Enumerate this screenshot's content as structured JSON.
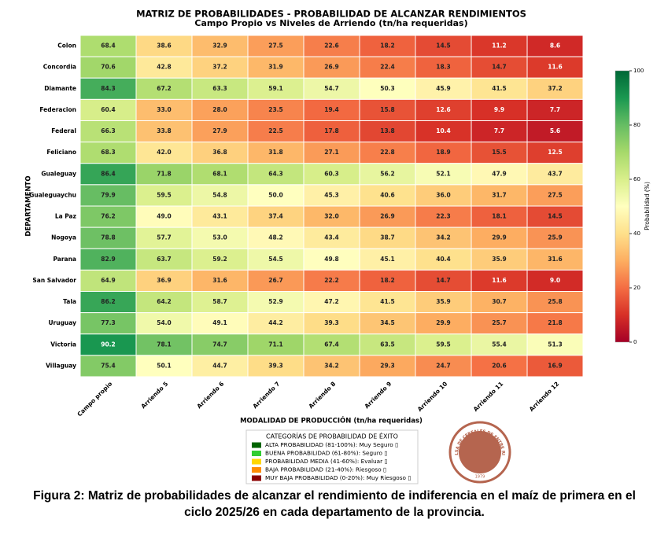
{
  "chart_data": {
    "type": "heatmap",
    "title": "MATRIZ DE PROBABILIDADES - PROBABILIDAD DE ALCANZAR RENDIMIENTOS",
    "subtitle": "Campo Propio vs Niveles de Arriendo (tn/ha requeridas)",
    "x_label": "MODALIDAD DE PRODUCCIÓN (tn/ha requeridas)",
    "y_label": "DEPARTAMENTO",
    "colorbar_label": "Probabilidad (%)",
    "categories": [
      "Campo propio",
      "Arriendo 5",
      "Arriendo 6",
      "Arriendo 7",
      "Arriendo 8",
      "Arriendo 9",
      "Arriendo 10",
      "Arriendo 11",
      "Arriendo 12"
    ],
    "rows": [
      "Colon",
      "Concordia",
      "Diamante",
      "Federacion",
      "Federal",
      "Feliciano",
      "Gualeguay",
      "Gualeguaychu",
      "La Paz",
      "Nogoya",
      "Parana",
      "San Salvador",
      "Tala",
      "Uruguay",
      "Victoria",
      "Villaguay"
    ],
    "values": [
      [
        68.4,
        38.6,
        32.9,
        27.5,
        22.6,
        18.2,
        14.5,
        11.2,
        8.6
      ],
      [
        70.6,
        42.8,
        37.2,
        31.9,
        26.9,
        22.4,
        18.3,
        14.7,
        11.6
      ],
      [
        84.3,
        67.2,
        63.3,
        59.1,
        54.7,
        50.3,
        45.9,
        41.5,
        37.2
      ],
      [
        60.4,
        33.0,
        28.0,
        23.5,
        19.4,
        15.8,
        12.6,
        9.9,
        7.7
      ],
      [
        66.3,
        33.8,
        27.9,
        22.5,
        17.8,
        13.8,
        10.4,
        7.7,
        5.6
      ],
      [
        68.3,
        42.0,
        36.8,
        31.8,
        27.1,
        22.8,
        18.9,
        15.5,
        12.5
      ],
      [
        86.4,
        71.8,
        68.1,
        64.3,
        60.3,
        56.2,
        52.1,
        47.9,
        43.7
      ],
      [
        79.9,
        59.5,
        54.8,
        50.0,
        45.3,
        40.6,
        36.0,
        31.7,
        27.5
      ],
      [
        76.2,
        49.0,
        43.1,
        37.4,
        32.0,
        26.9,
        22.3,
        18.1,
        14.5
      ],
      [
        78.8,
        57.7,
        53.0,
        48.2,
        43.4,
        38.7,
        34.2,
        29.9,
        25.9
      ],
      [
        82.9,
        63.7,
        59.2,
        54.5,
        49.8,
        45.1,
        40.4,
        35.9,
        31.6
      ],
      [
        64.9,
        36.9,
        31.6,
        26.7,
        22.2,
        18.2,
        14.7,
        11.6,
        9.0
      ],
      [
        86.2,
        64.2,
        58.7,
        52.9,
        47.2,
        41.5,
        35.9,
        30.7,
        25.8
      ],
      [
        77.3,
        54.0,
        49.1,
        44.2,
        39.3,
        34.5,
        29.9,
        25.7,
        21.8
      ],
      [
        90.2,
        78.1,
        74.7,
        71.1,
        67.4,
        63.5,
        59.5,
        55.4,
        51.3
      ],
      [
        75.4,
        50.1,
        44.7,
        39.3,
        34.2,
        29.3,
        24.7,
        20.6,
        16.9
      ]
    ],
    "value_labels": [
      [
        "68.4",
        "38.6",
        "32.9",
        "27.5",
        "22.6",
        "18.2",
        "14.5",
        "11.2",
        "8.6"
      ],
      [
        "70.6",
        "42.8",
        "37.2",
        "31.9",
        "26.9",
        "22.4",
        "18.3",
        "14.7",
        "11.6"
      ],
      [
        "84.3",
        "67.2",
        "63.3",
        "59.1",
        "54.7",
        "50.3",
        "45.9",
        "41.5",
        "37.2"
      ],
      [
        "60.4",
        "33.0",
        "28.0",
        "23.5",
        "19.4",
        "15.8",
        "12.6",
        "9.9",
        "7.7"
      ],
      [
        "66.3",
        "33.8",
        "27.9",
        "22.5",
        "17.8",
        "13.8",
        "10.4",
        "7.7",
        "5.6"
      ],
      [
        "68.3",
        "42.0",
        "36.8",
        "31.8",
        "27.1",
        "22.8",
        "18.9",
        "15.5",
        "12.5"
      ],
      [
        "86.4",
        "71.8",
        "68.1",
        "64.3",
        "60.3",
        "56.2",
        "52.1",
        "47.9",
        "43.7"
      ],
      [
        "79.9",
        "59.5",
        "54.8",
        "50.0",
        "45.3",
        "40.6",
        "36.0",
        "31.7",
        "27.5"
      ],
      [
        "76.2",
        "49.0",
        "43.1",
        "37.4",
        "32.0",
        "26.9",
        "22.3",
        "18.1",
        "14.5"
      ],
      [
        "78.8",
        "57.7",
        "53.0",
        "48.2",
        "43.4",
        "38.7",
        "34.2",
        "29.9",
        "25.9"
      ],
      [
        "82.9",
        "63.7",
        "59.2",
        "54.5",
        "49.8",
        "45.1",
        "40.4",
        "35.9",
        "31.6"
      ],
      [
        "64.9",
        "36.9",
        "31.6",
        "26.7",
        "22.2",
        "18.2",
        "14.7",
        "11.6",
        "9.0"
      ],
      [
        "86.2",
        "64.2",
        "58.7",
        "52.9",
        "47.2",
        "41.5",
        "35.9",
        "30.7",
        "25.8"
      ],
      [
        "77.3",
        "54.0",
        "49.1",
        "44.2",
        "39.3",
        "34.5",
        "29.9",
        "25.7",
        "21.8"
      ],
      [
        "90.2",
        "78.1",
        "74.7",
        "71.1",
        "67.4",
        "63.5",
        "59.5",
        "55.4",
        "51.3"
      ],
      [
        "75.4",
        "50.1",
        "44.7",
        "39.3",
        "34.2",
        "29.3",
        "24.7",
        "20.6",
        "16.9"
      ]
    ],
    "zlim": [
      0,
      100
    ],
    "zticks": [
      0,
      20,
      40,
      60,
      80,
      100
    ],
    "colorscale": [
      "#a50026",
      "#d73027",
      "#f46d43",
      "#fdae61",
      "#fee08b",
      "#ffffbf",
      "#d9ef8b",
      "#a6d96a",
      "#66bd63",
      "#1a9850",
      "#006837"
    ]
  },
  "legend": {
    "title": "CATEGORÍAS DE PROBABILIDAD DE ÉXITO",
    "items": [
      {
        "label": "ALTA PROBABILIDAD (81-100%): Muy Seguro ▯",
        "color": "#006400"
      },
      {
        "label": "BUENA PROBABILIDAD (61-80%): Seguro ▯",
        "color": "#32cd32"
      },
      {
        "label": "PROBABILIDAD MEDIA (41-60%): Evaluar ▯",
        "color": "#ffd700"
      },
      {
        "label": "BAJA PROBABILIDAD (21-40%): Riesgoso ▯",
        "color": "#ff8c00"
      },
      {
        "label": "MUY BAJA PROBABILIDAD (0-20%): Muy Riesgoso ▯",
        "color": "#8b0000"
      }
    ]
  },
  "logo": {
    "text": "BOLSA DE CEREALES DE ENTRE RIOS",
    "year": "1979"
  },
  "caption": "Figura 2: Matriz de probabilidades de alcanzar el rendimiento de indiferencia en el maíz de primera en el ciclo 2025/26 en cada departamento de la provincia."
}
